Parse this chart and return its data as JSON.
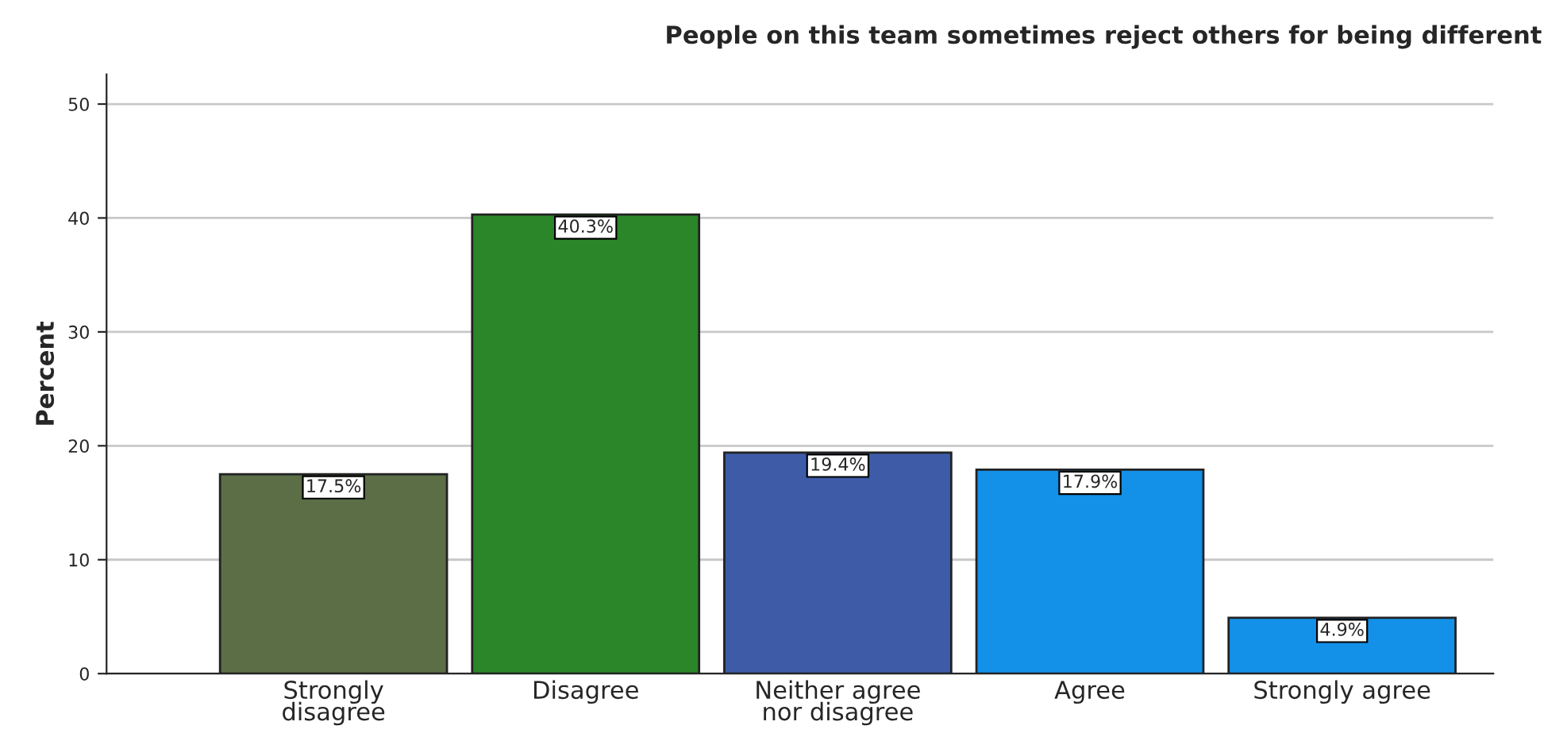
{
  "chart_data": {
    "type": "bar",
    "title": "People on this team sometimes reject others for being different",
    "ylabel": "Percent",
    "categories": [
      "Strongly\ndisagree",
      "Disagree",
      "Neither agree\nnor disagree",
      "Agree",
      "Strongly agree"
    ],
    "values": [
      17.5,
      40.3,
      19.4,
      17.9,
      4.9
    ],
    "value_labels": [
      "17.5%",
      "40.3%",
      "19.4%",
      "17.9%",
      "4.9%"
    ],
    "colors": [
      "#5b6e45",
      "#2a8629",
      "#3e5ba8",
      "#1390e8",
      "#1390e8"
    ],
    "ylim": [
      0,
      52.6
    ],
    "yticks": [
      0,
      10,
      20,
      30,
      40,
      50
    ],
    "grid": "y"
  }
}
